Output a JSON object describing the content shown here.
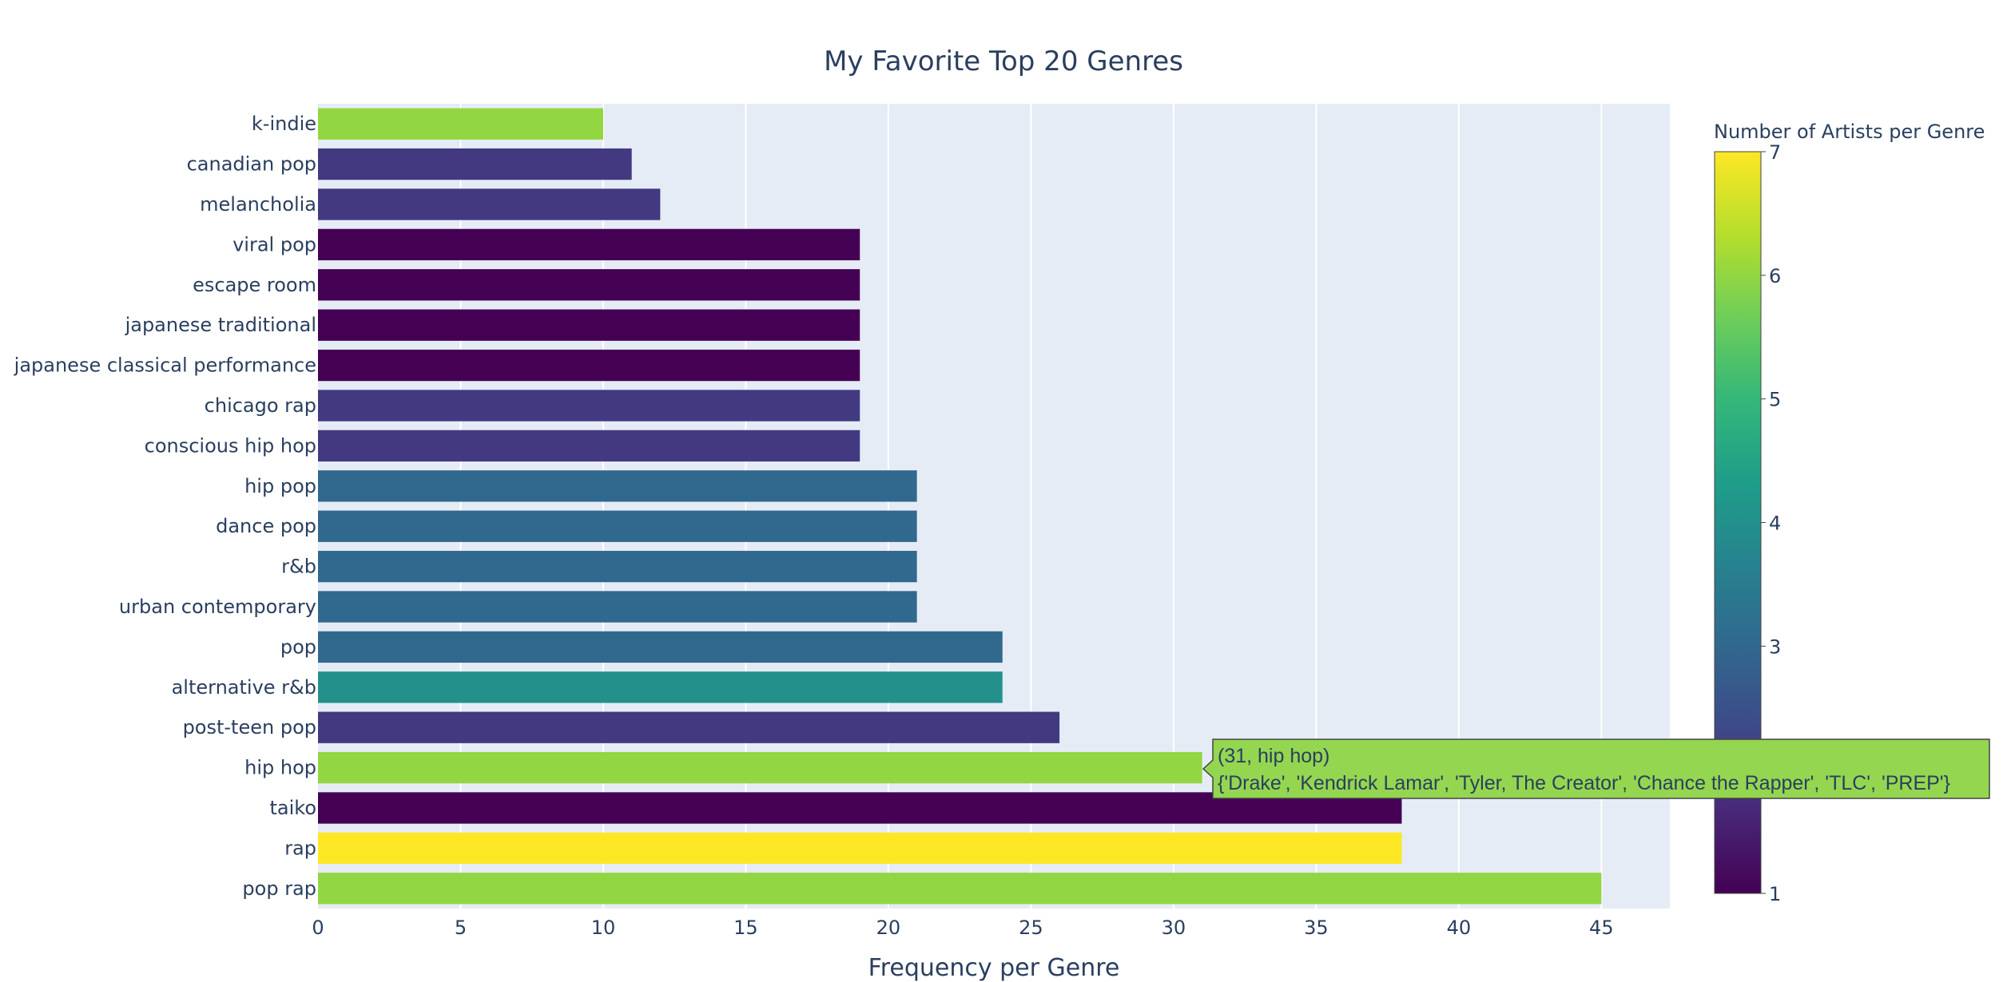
{
  "chart_data": {
    "type": "bar",
    "orientation": "horizontal",
    "title": "My Favorite Top 20 Genres",
    "xlabel": "Frequency per Genre",
    "ylabel": "",
    "xlim": [
      0,
      47.4
    ],
    "x_ticks": [
      0,
      5,
      10,
      15,
      20,
      25,
      30,
      35,
      40,
      45
    ],
    "grid": true,
    "categories": [
      "k-indie",
      "canadian pop",
      "melancholia",
      "viral pop",
      "escape room",
      "japanese traditional",
      "japanese classical performance",
      "chicago rap",
      "conscious hip hop",
      "hip pop",
      "dance pop",
      "r&b",
      "urban contemporary",
      "pop",
      "alternative r&b",
      "post-teen pop",
      "hip hop",
      "taiko",
      "rap",
      "pop rap"
    ],
    "values": [
      10,
      11,
      12,
      19,
      19,
      19,
      19,
      19,
      19,
      21,
      21,
      21,
      21,
      24,
      24,
      26,
      31,
      38,
      38,
      45
    ],
    "color_values": [
      6,
      2,
      2,
      1,
      1,
      1,
      1,
      2,
      2,
      3,
      3,
      3,
      3,
      3,
      4,
      2,
      6,
      1,
      7,
      6
    ],
    "colorscale": "Viridis",
    "colorbar": {
      "title": "Number of Artists per Genre",
      "range": [
        1,
        7
      ],
      "ticks": [
        1,
        2,
        3,
        4,
        5,
        6,
        7
      ]
    },
    "tooltip": {
      "line1": "(31, hip hop)",
      "line2": "{'Drake', 'Kendrick Lamar', 'Tyler, The Creator', 'Chance the Rapper', 'TLC', 'PREP'}",
      "category": "hip hop",
      "value": 31,
      "color_value": 6
    }
  }
}
